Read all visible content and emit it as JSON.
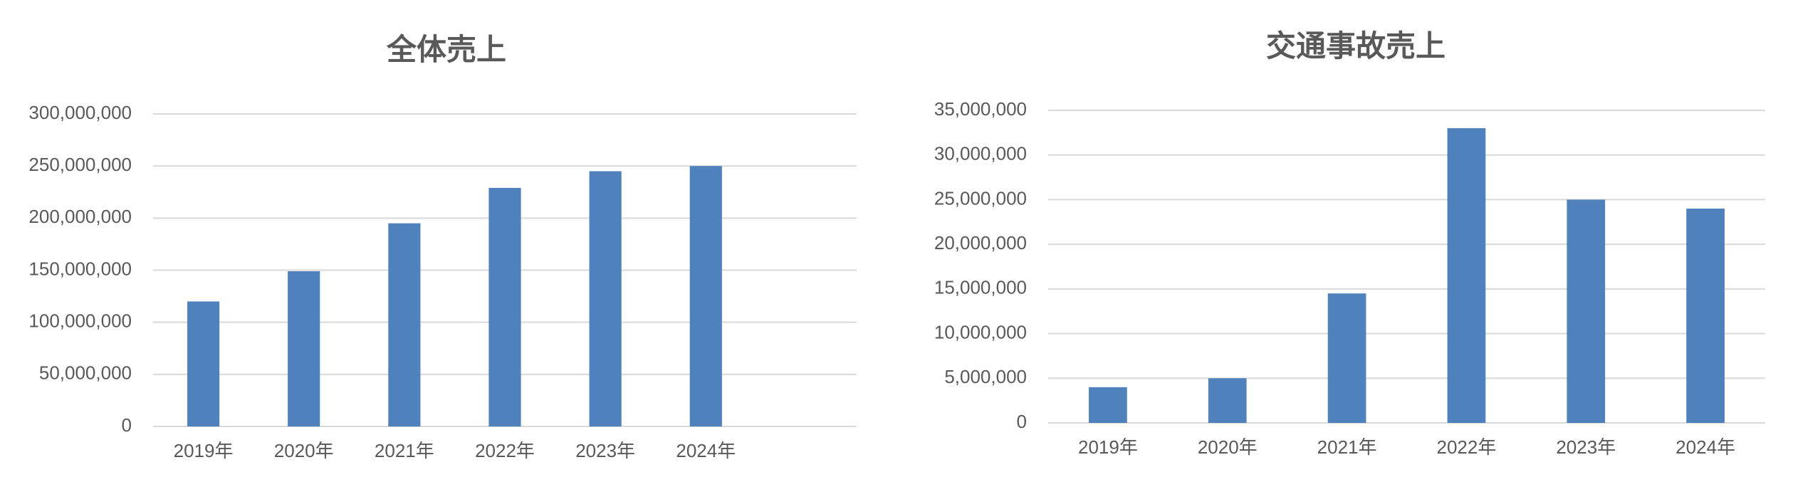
{
  "chart_data": [
    {
      "type": "bar",
      "title": "全体売上",
      "categories": [
        "2019年",
        "2020年",
        "2021年",
        "2022年",
        "2023年",
        "2024年",
        null
      ],
      "values": [
        120000000,
        149000000,
        195000000,
        229000000,
        245000000,
        250000000,
        null
      ],
      "color": "#4f81bd",
      "ylim": [
        0,
        300000000
      ],
      "yticks": [
        0,
        {
          "value": 50000000,
          "label": "50,000,000"
        },
        {
          "value": 100000000,
          "label": "100,000,000"
        },
        {
          "value": 150000000,
          "label": "150,000,000"
        },
        {
          "value": 200000000,
          "label": "200,000,000"
        },
        {
          "value": 250000000,
          "label": "250,000,000"
        },
        {
          "value": 300000000,
          "label": "300,000,000"
        }
      ],
      "grid": true
    },
    {
      "type": "bar",
      "title": "交通事故売上",
      "categories": [
        "2019年",
        "2020年",
        "2021年",
        "2022年",
        "2023年",
        "2024年"
      ],
      "values": [
        4000000,
        5000000,
        14500000,
        33000000,
        25000000,
        24000000
      ],
      "color": "#4f81bd",
      "ylim": [
        0,
        35000000
      ],
      "yticks": [
        0,
        {
          "value": 5000000,
          "label": "5,000,000"
        },
        {
          "value": 10000000,
          "label": "10,000,000"
        },
        {
          "value": 15000000,
          "label": "15,000,000"
        },
        {
          "value": 20000000,
          "label": "20,000,000"
        },
        {
          "value": 25000000,
          "label": "25,000,000"
        },
        {
          "value": 30000000,
          "label": "30,000,000"
        },
        {
          "value": 35000000,
          "label": "35,000,000"
        }
      ],
      "grid": true
    }
  ]
}
